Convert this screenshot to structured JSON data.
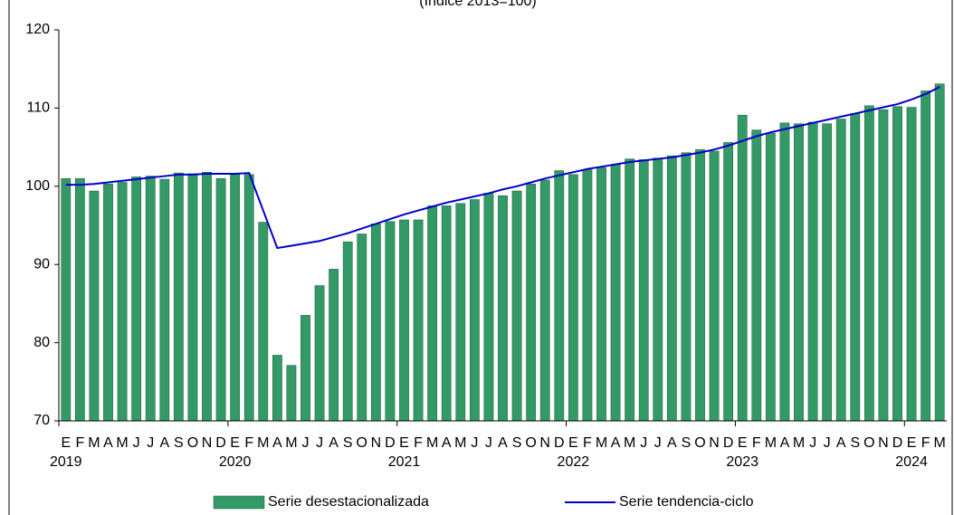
{
  "chart_data": {
    "type": "bar-line",
    "subtitle": "(Índice 2013=100)",
    "categories": [
      "E",
      "F",
      "M",
      "A",
      "M",
      "J",
      "J",
      "A",
      "S",
      "O",
      "N",
      "D",
      "E",
      "F",
      "M",
      "A",
      "M",
      "J",
      "J",
      "A",
      "S",
      "O",
      "N",
      "D",
      "E",
      "F",
      "M",
      "A",
      "M",
      "J",
      "J",
      "A",
      "S",
      "O",
      "N",
      "D",
      "E",
      "F",
      "M",
      "A",
      "M",
      "J",
      "J",
      "A",
      "S",
      "O",
      "N",
      "D",
      "E",
      "F",
      "M",
      "A",
      "M",
      "J",
      "J",
      "A",
      "S",
      "O",
      "N",
      "D",
      "E",
      "F",
      "M"
    ],
    "years": [
      "2019",
      null,
      null,
      null,
      null,
      null,
      null,
      null,
      null,
      null,
      null,
      null,
      "2020",
      null,
      null,
      null,
      null,
      null,
      null,
      null,
      null,
      null,
      null,
      null,
      "2021",
      null,
      null,
      null,
      null,
      null,
      null,
      null,
      null,
      null,
      null,
      null,
      "2022",
      null,
      null,
      null,
      null,
      null,
      null,
      null,
      null,
      null,
      null,
      null,
      "2023",
      null,
      null,
      null,
      null,
      null,
      null,
      null,
      null,
      null,
      null,
      null,
      "2024",
      null,
      null
    ],
    "series": [
      {
        "name": "Serie desestacionalizada",
        "type": "bar",
        "color": "#339966",
        "values": [
          101.0,
          101.0,
          99.4,
          100.3,
          100.5,
          101.2,
          101.3,
          100.9,
          101.7,
          101.6,
          101.8,
          101.0,
          101.5,
          101.5,
          95.4,
          78.4,
          77.1,
          83.5,
          87.3,
          89.4,
          92.9,
          93.9,
          95.2,
          95.5,
          95.7,
          95.7,
          97.5,
          97.5,
          97.8,
          98.3,
          99.1,
          98.8,
          99.4,
          100.3,
          100.8,
          102.0,
          101.5,
          102.1,
          102.4,
          102.8,
          103.5,
          103.4,
          103.6,
          103.9,
          104.3,
          104.7,
          104.5,
          105.6,
          109.1,
          107.2,
          106.8,
          108.1,
          108.0,
          108.2,
          108.0,
          108.6,
          109.3,
          110.3,
          109.8,
          110.2,
          110.1,
          112.2,
          113.1
        ]
      },
      {
        "name": "Serie tendencia-ciclo",
        "type": "line",
        "color": "#0000cc",
        "values": [
          100.2,
          100.2,
          100.3,
          100.5,
          100.7,
          100.9,
          101.1,
          101.3,
          101.5,
          101.5,
          101.6,
          101.6,
          101.6,
          101.7,
          96.9,
          92.1,
          92.4,
          92.7,
          93.0,
          93.5,
          94.0,
          94.6,
          95.2,
          95.8,
          96.4,
          96.9,
          97.4,
          97.9,
          98.3,
          98.7,
          99.1,
          99.6,
          100.0,
          100.5,
          101.0,
          101.4,
          101.8,
          102.2,
          102.5,
          102.8,
          103.1,
          103.3,
          103.5,
          103.7,
          104.0,
          104.3,
          104.7,
          105.2,
          105.8,
          106.4,
          106.9,
          107.3,
          107.7,
          108.1,
          108.5,
          108.9,
          109.3,
          109.7,
          110.1,
          110.5,
          111.1,
          111.8,
          112.7
        ]
      }
    ],
    "ylim": [
      70,
      120
    ],
    "yticks": [
      70,
      80,
      90,
      100,
      110,
      120
    ],
    "grid": false
  }
}
